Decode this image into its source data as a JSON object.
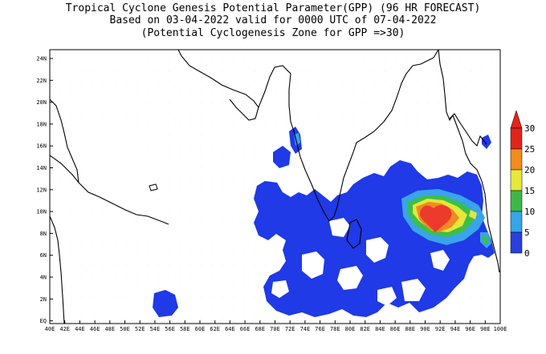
{
  "title": {
    "line1": "Tropical Cyclone Genesis Potential Parameter(GPP) (96 HR FORECAST)",
    "line2": "Based on 03-04-2022 valid for 0000 UTC of 07-04-2022",
    "line3": "(Potential Cyclogenesis Zone for GPP =>30)"
  },
  "lat_labels": [
    "24N",
    "22N",
    "20N",
    "18N",
    "16N",
    "14N",
    "12N",
    "10N",
    "8N",
    "6N",
    "4N",
    "2N",
    "EQ"
  ],
  "lon_labels": [
    "40E",
    "42E",
    "44E",
    "46E",
    "48E",
    "50E",
    "52E",
    "54E",
    "56E",
    "58E",
    "60E",
    "62E",
    "64E",
    "66E",
    "68E",
    "70E",
    "72E",
    "74E",
    "76E",
    "78E",
    "80E",
    "82E",
    "84E",
    "86E",
    "88E",
    "90E",
    "92E",
    "94E",
    "96E",
    "98E",
    "100E"
  ],
  "colorbar": {
    "labels": [
      "30",
      "25",
      "20",
      "15",
      "10",
      "5",
      "0"
    ],
    "colors": [
      "#e3241b",
      "#f28c1c",
      "#e8e83a",
      "#3cb84a",
      "#35a6e8",
      "#2a3fe0"
    ]
  },
  "colors": {
    "land_outline": "#000000",
    "grid": "#b4b4b4",
    "low": "#1f3ae6",
    "mid": "#3aa3ea",
    "moderate": "#3bbf4a",
    "elevated": "#e6e63a",
    "high": "#f08a24",
    "peak": "#ec3b2c"
  }
}
